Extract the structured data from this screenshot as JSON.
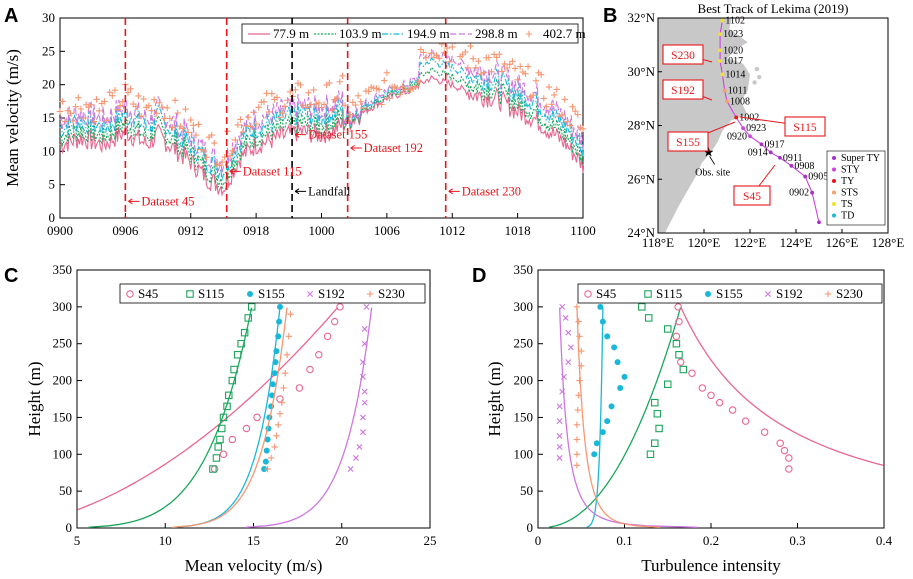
{
  "panels": {
    "A": "A",
    "B": "B",
    "C": "C",
    "D": "D"
  },
  "colors": {
    "h77": "#e8668f",
    "h103": "#1aa65a",
    "h194": "#19b8d8",
    "h298": "#cc77e0",
    "h402": "#f69672",
    "S45": "#e8668f",
    "S115": "#1aa65a",
    "S155": "#19b8d8",
    "S192": "#cc77e0",
    "S230": "#f69672",
    "red": "#e8161b",
    "land": "#c8c8c8",
    "superTY": "#a532c8",
    "STY": "#cc44dd",
    "TY": "#e8161b",
    "STS": "#f3a06a",
    "TS": "#f2e12a",
    "TD": "#19b8d8"
  },
  "chart_data": [
    {
      "id": "A",
      "type": "line",
      "title": "",
      "xlabel": "",
      "ylabel": "Mean velocity (m/s)",
      "ylim": [
        0,
        30
      ],
      "yticks": [
        0,
        5,
        10,
        15,
        20,
        25,
        30
      ],
      "xtick_labels": [
        "0900",
        "0906",
        "0912",
        "0918",
        "1000",
        "1006",
        "1012",
        "1018",
        "1100"
      ],
      "legend": [
        "77.9 m",
        "103.9 m",
        "194.9 m",
        "298.8 m",
        "402.7 m"
      ],
      "control_points": {
        "x": [
          0,
          4,
          8,
          12,
          16,
          18,
          20,
          24,
          27,
          30,
          33,
          36,
          40,
          44,
          48,
          52,
          56,
          60,
          64,
          68,
          72,
          76,
          80,
          84,
          87,
          90,
          93,
          96
        ],
        "y": [
          11,
          12,
          11,
          13,
          11,
          12.5,
          11,
          8.5,
          6,
          4.5,
          9,
          11,
          12,
          13,
          12.5,
          14,
          16,
          18,
          19,
          21,
          20,
          18.5,
          18,
          16,
          15,
          13,
          11,
          8
        ]
      },
      "series_offsets": {
        "77.9 m": 0,
        "103.9 m": 1.2,
        "194.9 m": 2.6,
        "298.8 m": 3.8,
        "402.7 m": 5.2
      },
      "vlines": [
        {
          "x": 12,
          "label": "Dataset 45",
          "color": "red"
        },
        {
          "x": 30.6,
          "label": "Dataset 115",
          "color": "red"
        },
        {
          "x": 42.6,
          "label": "Dataset 155",
          "color": "black"
        },
        {
          "x": 52.8,
          "label": "Dataset 192",
          "color": "red"
        },
        {
          "x": 70.8,
          "label": "Dataset 230",
          "color": "red"
        }
      ],
      "landfall_label": "Landfall"
    },
    {
      "id": "C",
      "type": "line",
      "xlabel": "Mean velocity (m/s)",
      "ylabel": "Height (m)",
      "xlim": [
        5,
        25
      ],
      "ylim": [
        0,
        350
      ],
      "xticks": [
        5,
        10,
        15,
        20,
        25
      ],
      "yticks": [
        0,
        50,
        100,
        150,
        200,
        250,
        300,
        350
      ],
      "series": [
        {
          "name": "S45",
          "marker": "o",
          "points_x": [
            12.8,
            13.3,
            13.8,
            14.6,
            15.2,
            16.5,
            17.6,
            18.2,
            18.7,
            19.2,
            19.6,
            19.9
          ],
          "points_y": [
            80,
            100,
            120,
            135,
            150,
            175,
            190,
            215,
            235,
            260,
            280,
            300
          ],
          "fit_top": [
            19.8,
            300
          ]
        },
        {
          "name": "S115",
          "marker": "s",
          "points_x": [
            12.7,
            12.9,
            13.0,
            13.1,
            13.2,
            13.3,
            13.5,
            13.6,
            13.8,
            13.9,
            14.1,
            14.3,
            14.5,
            14.7,
            14.9
          ],
          "points_y": [
            80,
            95,
            110,
            120,
            135,
            150,
            165,
            180,
            200,
            215,
            235,
            250,
            265,
            285,
            300
          ],
          "fit_top": [
            14.9,
            300
          ]
        },
        {
          "name": "S155",
          "marker": "dot",
          "points_x": [
            15.6,
            15.7,
            15.75,
            15.8,
            15.85,
            15.9,
            16.0,
            16.05,
            16.1,
            16.2,
            16.25,
            16.3,
            16.4,
            16.45,
            16.5
          ],
          "points_y": [
            80,
            90,
            105,
            120,
            135,
            150,
            165,
            180,
            195,
            210,
            225,
            240,
            260,
            280,
            300
          ],
          "fit_top": [
            16.5,
            300
          ]
        },
        {
          "name": "S192",
          "marker": "x",
          "points_x": [
            20.5,
            20.8,
            21.0,
            21.2,
            21.2,
            21.3,
            21.3,
            21.2,
            21.2,
            21.3,
            21.3,
            21.4
          ],
          "points_y": [
            80,
            95,
            110,
            130,
            150,
            170,
            185,
            205,
            225,
            250,
            270,
            300
          ],
          "fit_top": [
            21.7,
            300
          ]
        },
        {
          "name": "S230",
          "marker": "+",
          "points_x": [
            15.8,
            16.0,
            16.2,
            16.3,
            16.4,
            16.5,
            16.6,
            16.7,
            16.8,
            16.9,
            17.0,
            17.1
          ],
          "points_y": [
            80,
            95,
            110,
            125,
            140,
            155,
            170,
            190,
            210,
            235,
            260,
            290
          ],
          "fit_top": [
            16.9,
            300
          ]
        }
      ]
    },
    {
      "id": "D",
      "type": "line",
      "xlabel": "Turbulence intensity",
      "ylabel": "Height (m)",
      "xlim": [
        0,
        0.4
      ],
      "ylim": [
        0,
        350
      ],
      "xticks": [
        0,
        0.1,
        0.2,
        0.3,
        0.4
      ],
      "xtick_labels": [
        "0",
        "0.1",
        "0.2",
        "0.3",
        "0.4"
      ],
      "yticks": [
        0,
        50,
        100,
        150,
        200,
        250,
        300,
        350
      ],
      "series": [
        {
          "name": "S45",
          "marker": "o",
          "points_x": [
            0.162,
            0.163,
            0.16,
            0.165,
            0.178,
            0.19,
            0.2,
            0.21,
            0.225,
            0.24,
            0.262,
            0.28,
            0.285,
            0.29,
            0.29
          ],
          "points_y": [
            300,
            280,
            260,
            225,
            210,
            190,
            180,
            170,
            160,
            145,
            130,
            115,
            105,
            95,
            80
          ]
        },
        {
          "name": "S115",
          "marker": "s",
          "points_x": [
            0.12,
            0.128,
            0.15,
            0.16,
            0.163,
            0.168,
            0.15,
            0.135,
            0.138,
            0.14,
            0.135,
            0.13
          ],
          "points_y": [
            300,
            285,
            270,
            250,
            235,
            215,
            195,
            170,
            155,
            135,
            115,
            100
          ]
        },
        {
          "name": "S155",
          "marker": "dot",
          "points_x": [
            0.072,
            0.075,
            0.08,
            0.088,
            0.092,
            0.1,
            0.095,
            0.085,
            0.08,
            0.075,
            0.068,
            0.065
          ],
          "points_y": [
            300,
            280,
            260,
            245,
            225,
            205,
            190,
            165,
            145,
            130,
            115,
            100
          ]
        },
        {
          "name": "S192",
          "marker": "x",
          "points_x": [
            0.028,
            0.032,
            0.035,
            0.038,
            0.035,
            0.03,
            0.028,
            0.025,
            0.025,
            0.025,
            0.025,
            0.025
          ],
          "points_y": [
            300,
            285,
            265,
            245,
            225,
            205,
            185,
            165,
            145,
            125,
            110,
            95
          ]
        },
        {
          "name": "S230",
          "marker": "+",
          "points_x": [
            0.045,
            0.047,
            0.048,
            0.05,
            0.05,
            0.048,
            0.047,
            0.046,
            0.045,
            0.045,
            0.045,
            0.045
          ],
          "points_y": [
            300,
            280,
            260,
            240,
            220,
            200,
            180,
            160,
            140,
            120,
            100,
            85
          ]
        }
      ]
    },
    {
      "id": "B",
      "type": "map",
      "title": "Best Track of Lekima (2019)",
      "xlim": [
        118,
        128
      ],
      "ylim": [
        24,
        32
      ],
      "xticks": [
        118,
        120,
        122,
        124,
        126,
        128
      ],
      "xtick_labels": [
        "118°E",
        "120°E",
        "122°E",
        "124°E",
        "126°E",
        "128°E"
      ],
      "yticks": [
        24,
        26,
        28,
        30,
        32
      ],
      "ytick_labels": [
        "24°N",
        "26°N",
        "28°N",
        "30°N",
        "32°N"
      ],
      "track": [
        {
          "lon": 125.0,
          "lat": 24.4,
          "label": "",
          "cat": "superTY"
        },
        {
          "lon": 124.7,
          "lat": 25.5,
          "label": "0902",
          "cat": "superTY"
        },
        {
          "lon": 124.4,
          "lat": 26.1,
          "label": "0905",
          "cat": "superTY"
        },
        {
          "lon": 123.8,
          "lat": 26.5,
          "label": "0908",
          "cat": "superTY"
        },
        {
          "lon": 123.3,
          "lat": 26.8,
          "label": "0911",
          "cat": "superTY"
        },
        {
          "lon": 122.9,
          "lat": 27.0,
          "label": "0914",
          "cat": "superTY"
        },
        {
          "lon": 122.5,
          "lat": 27.3,
          "label": "0917",
          "cat": "superTY"
        },
        {
          "lon": 122.0,
          "lat": 27.6,
          "label": "0920",
          "cat": "STY"
        },
        {
          "lon": 121.7,
          "lat": 27.9,
          "label": "0923",
          "cat": "STY"
        },
        {
          "lon": 121.4,
          "lat": 28.3,
          "label": "1002",
          "cat": "TY"
        },
        {
          "lon": 121.0,
          "lat": 28.9,
          "label": "1008",
          "cat": "STS"
        },
        {
          "lon": 120.9,
          "lat": 29.3,
          "label": "1011",
          "cat": "STS"
        },
        {
          "lon": 120.8,
          "lat": 29.9,
          "label": "1014",
          "cat": "TS"
        },
        {
          "lon": 120.7,
          "lat": 30.4,
          "label": "1017",
          "cat": "TS"
        },
        {
          "lon": 120.7,
          "lat": 30.8,
          "label": "1020",
          "cat": "TS"
        },
        {
          "lon": 120.7,
          "lat": 31.4,
          "label": "1023",
          "cat": "TS"
        },
        {
          "lon": 120.8,
          "lat": 31.9,
          "label": "1102",
          "cat": "TS"
        }
      ],
      "stations": [
        "S230",
        "S192",
        "S155",
        "S115",
        "S45"
      ],
      "obs_site": "Obs. site",
      "legend": [
        "Super TY",
        "STY",
        "TY",
        "STS",
        "TS",
        "TD"
      ]
    }
  ]
}
